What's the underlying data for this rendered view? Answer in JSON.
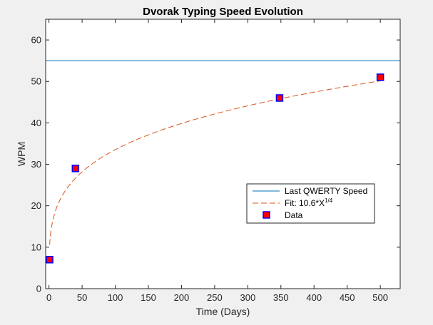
{
  "chart_data": {
    "type": "scatter",
    "title": "Dvorak Typing Speed Evolution",
    "xlabel": "Time (Days)",
    "ylabel": "WPM",
    "xlim": [
      -5,
      530
    ],
    "ylim": [
      0,
      65
    ],
    "xticks": [
      0,
      50,
      100,
      150,
      200,
      250,
      300,
      350,
      400,
      450,
      500
    ],
    "yticks": [
      0,
      10,
      20,
      30,
      40,
      50,
      60
    ],
    "grid": false,
    "legend_placement": "lower-right",
    "series": [
      {
        "name": "Last QWERTY Speed",
        "kind": "hline",
        "y": 55,
        "color": "#0072bd"
      },
      {
        "name": "Fit: 10.6*X^{1/4}",
        "legend_label_base": "Fit: 10.6*X",
        "legend_label_exponent": "1/4",
        "kind": "curve",
        "coefficient": 10.6,
        "exponent": 0.25,
        "x_range": [
          1,
          500
        ],
        "color": "#d95319",
        "dash": "dashed"
      },
      {
        "name": "Data",
        "kind": "points",
        "x": [
          1,
          40,
          348,
          500
        ],
        "y": [
          7,
          29,
          46,
          51
        ],
        "marker": "square",
        "face_color": "#ff0000",
        "edge_color": "#0000ff"
      }
    ]
  }
}
